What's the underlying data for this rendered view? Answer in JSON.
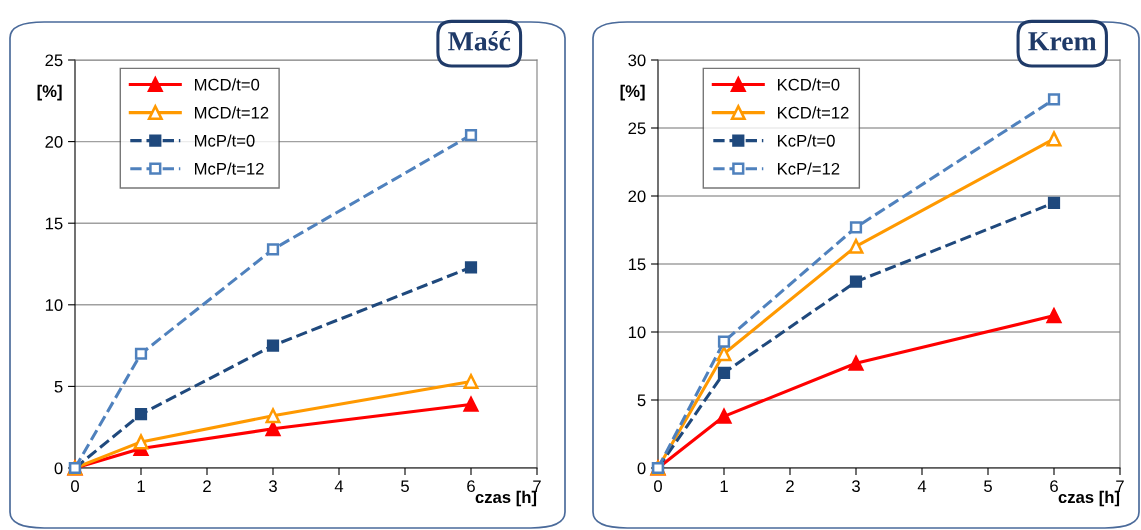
{
  "chart_data": [
    {
      "type": "line",
      "title": "Maść",
      "xlabel": "czas [h]",
      "ylabel": "[%]",
      "x": [
        0,
        1,
        3,
        6
      ],
      "xlim": [
        0,
        7
      ],
      "xticks": [
        0,
        1,
        2,
        3,
        4,
        5,
        6,
        7
      ],
      "ylim": [
        0,
        25
      ],
      "yticks": [
        0,
        5,
        10,
        15,
        20,
        25
      ],
      "grid": "y",
      "legend": "top left",
      "series": [
        {
          "name": "MCD/t=0",
          "color": "#ff0000",
          "values": [
            0,
            1.2,
            2.4,
            3.9
          ],
          "marker": "triangle",
          "line_style": "solid"
        },
        {
          "name": "MCD/t=12",
          "color": "#ff9900",
          "values": [
            0,
            1.6,
            3.2,
            5.3
          ],
          "marker": "triangle",
          "line_style": "solid"
        },
        {
          "name": "McP/t=0",
          "color": "#1f497d",
          "values": [
            0,
            3.3,
            7.5,
            12.3
          ],
          "marker": "square",
          "line_style": "dashed"
        },
        {
          "name": "McP/t=12",
          "color": "#4f81bd",
          "values": [
            0,
            7.0,
            13.4,
            20.4
          ],
          "marker": "square",
          "line_style": "dashed"
        }
      ]
    },
    {
      "type": "line",
      "title": "Krem",
      "xlabel": "czas [h]",
      "ylabel": "[%]",
      "x": [
        0,
        1,
        3,
        6
      ],
      "xlim": [
        0,
        7
      ],
      "xticks": [
        0,
        1,
        2,
        3,
        4,
        5,
        6,
        7
      ],
      "ylim": [
        0,
        30
      ],
      "yticks": [
        0,
        5,
        10,
        15,
        20,
        25,
        30
      ],
      "grid": "y",
      "legend": "top left",
      "series": [
        {
          "name": "KCD/t=0",
          "color": "#ff0000",
          "values": [
            0,
            3.8,
            7.7,
            11.2
          ],
          "marker": "triangle",
          "line_style": "solid"
        },
        {
          "name": "KCD/t=12",
          "color": "#ff9900",
          "values": [
            0,
            8.4,
            16.3,
            24.2
          ],
          "marker": "triangle",
          "line_style": "solid"
        },
        {
          "name": "KcP/t=0",
          "color": "#1f497d",
          "values": [
            0,
            7.0,
            13.7,
            19.5
          ],
          "marker": "square",
          "line_style": "dashed"
        },
        {
          "name": "KcP/=12",
          "color": "#4f81bd",
          "values": [
            0,
            9.3,
            17.7,
            27.1
          ],
          "marker": "square",
          "line_style": "dashed"
        }
      ]
    }
  ]
}
